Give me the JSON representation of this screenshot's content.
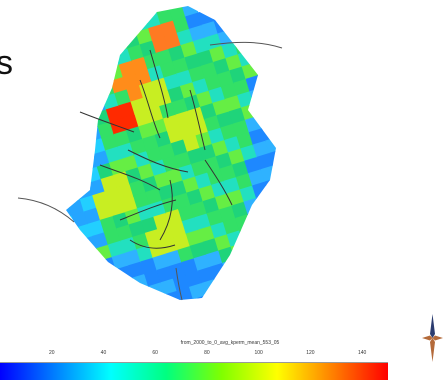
{
  "title_fragment": "s",
  "colorbar": {
    "title": "from_2000_to_0_avg_kperm_mean_553_05",
    "ticks": [
      "20",
      "40",
      "60",
      "80",
      "100",
      "120",
      "140"
    ],
    "min": 0,
    "max": 150,
    "colors": [
      "#0000ff",
      "#0080ff",
      "#00ffff",
      "#00ff80",
      "#80ff00",
      "#ffff00",
      "#ff8000",
      "#ff0000"
    ]
  },
  "map": {
    "description_colors": {
      "low": "#1e90ff",
      "mid": "#22dd55",
      "high": "#ff2200"
    }
  },
  "compass": {
    "icon": "compass-rose-icon"
  }
}
